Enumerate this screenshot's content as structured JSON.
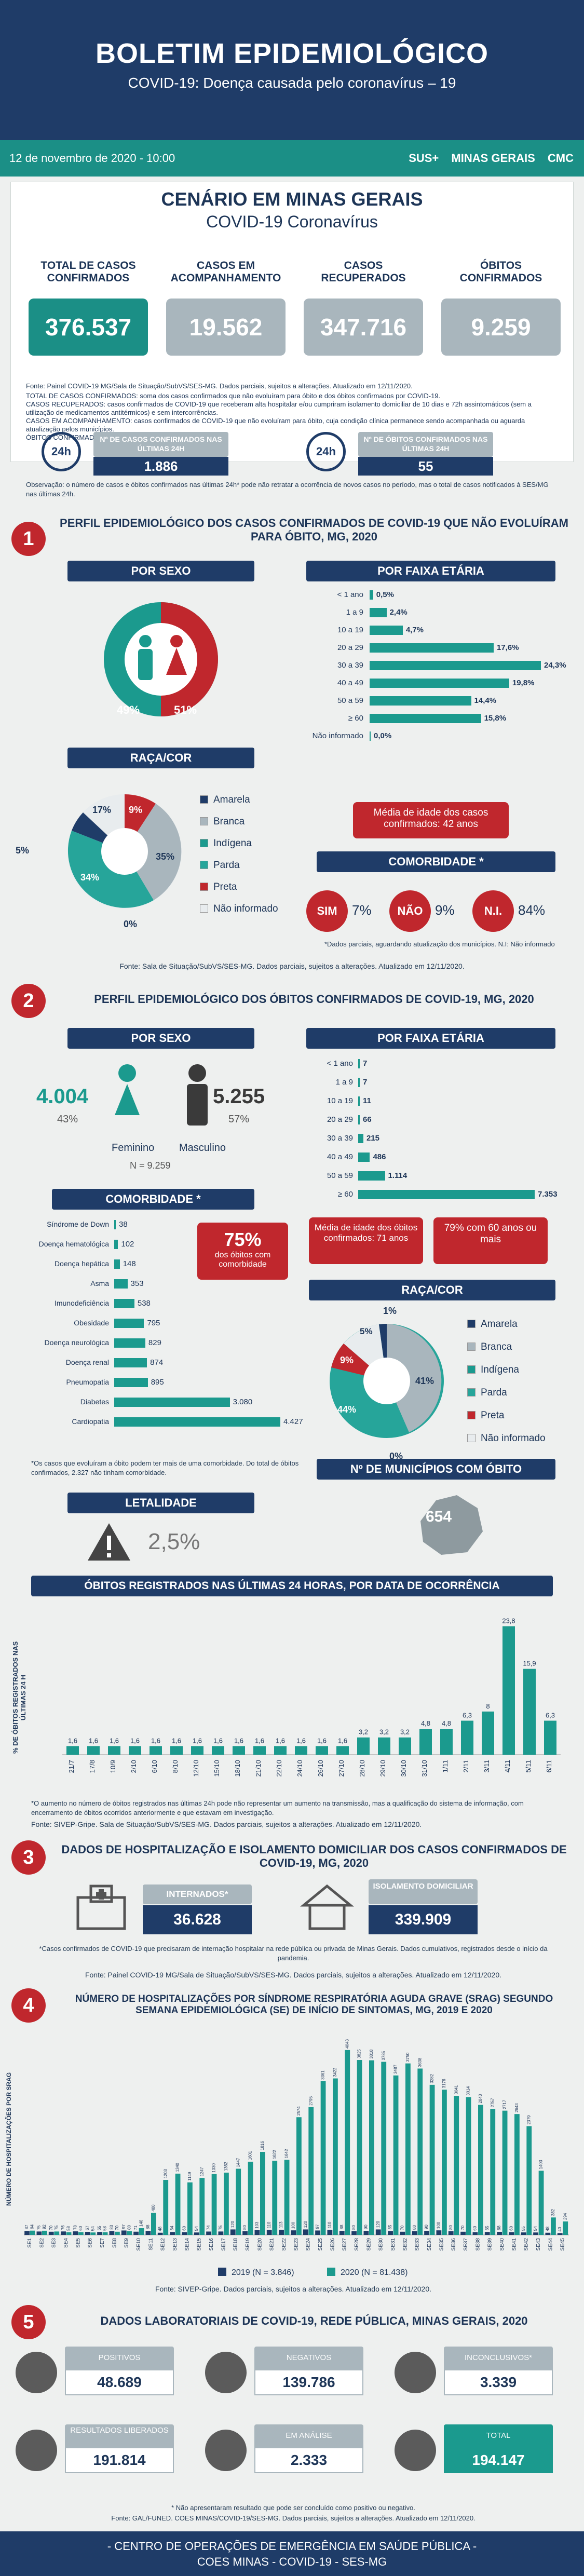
{
  "header": {
    "title": "BOLETIM EPIDEMIOLÓGICO",
    "subtitle": "COVID-19: Doença causada pelo coronavírus – 19"
  },
  "datebar": {
    "date": "12 de novembro de 2020 - 10:00",
    "logo_sus": "SUS+",
    "logo_mg": "MINAS GERAIS",
    "logo_cmc": "CMC"
  },
  "scenario": {
    "title1": "CENÁRIO EM MINAS GERAIS",
    "title2": "COVID-19 Coronavírus",
    "kpis": [
      {
        "label": "TOTAL DE CASOS CONFIRMADOS",
        "value": "376.537",
        "color": "#1b8f86"
      },
      {
        "label": "CASOS EM ACOMPANHAMENTO",
        "value": "19.562",
        "color": "#a9b6bd"
      },
      {
        "label": "CASOS RECUPERADOS",
        "value": "347.716",
        "color": "#a9b6bd"
      },
      {
        "label": "ÓBITOS CONFIRMADOS",
        "value": "9.259",
        "color": "#a9b6bd"
      }
    ],
    "source": "Fonte: Painel COVID-19 MG/Sala de Situação/SubVS/SES-MG. Dados parciais, sujeitos a alterações. Atualizado em 12/11/2020.",
    "notes": [
      "TOTAL DE CASOS CONFIRMADOS: soma dos casos confirmados que não evoluíram para óbito e dos óbitos confirmados por COVID-19.",
      "CASOS RECUPERADOS: casos confirmados de COVID-19 que receberam alta hospitalar e/ou cumpriram isolamento domiciliar de 10 dias e 72h assintomáticos (sem a utilização de medicamentos antitérmicos) e sem intercorrências.",
      "CASOS EM ACOMPANHAMENTO: casos confirmados de COVID-19 que não evoluíram para óbito, cuja condição clínica permanece sendo acompanhada ou aguarda atualização pelos municípios.",
      "ÓBITOS CONFIRMADOS: óbitos confirmados para COVID-19."
    ],
    "last24": [
      {
        "label": "Nº DE CASOS CONFIRMADOS NAS ÚLTIMAS 24H",
        "value": "1.886",
        "icon": "24h"
      },
      {
        "label": "Nº DE ÓBITOS CONFIRMADOS NAS ÚLTIMAS 24H",
        "value": "55",
        "icon": "24h"
      }
    ],
    "observacao": "Observação: o número de casos e óbitos confirmados nas últimas 24h* pode não retratar a ocorrência de novos casos no período, mas o total de casos notificados à SES/MG nas últimas 24h."
  },
  "s1": {
    "num": "1",
    "title": "PERFIL EPIDEMIOLÓGICO DOS CASOS CONFIRMADOS DE COVID-19 QUE NÃO EVOLUÍRAM PARA ÓBITO, MG, 2020",
    "sexo_title": "POR SEXO",
    "male_pct": "49%",
    "female_pct": "51%",
    "faixa_title": "POR FAIXA ETÁRIA",
    "faixa": [
      {
        "l": "< 1 ano",
        "v": 0.5,
        "t": "0,5%"
      },
      {
        "l": "1 a 9",
        "v": 2.4,
        "t": "2,4%"
      },
      {
        "l": "10 a 19",
        "v": 4.7,
        "t": "4,7%"
      },
      {
        "l": "20 a 29",
        "v": 17.6,
        "t": "17,6%"
      },
      {
        "l": "30 a 39",
        "v": 24.3,
        "t": "24,3%"
      },
      {
        "l": "40 a 49",
        "v": 19.8,
        "t": "19,8%"
      },
      {
        "l": "50 a 59",
        "v": 14.4,
        "t": "14,4%"
      },
      {
        "l": "≥ 60",
        "v": 15.8,
        "t": "15,8%"
      },
      {
        "l": "Não informado",
        "v": 0.0,
        "t": "0,0%"
      }
    ],
    "raca_title": "RAÇA/COR",
    "raca": [
      {
        "l": "Amarela",
        "v": 5,
        "t": "5%",
        "c": "#1f3c68"
      },
      {
        "l": "Branca",
        "v": 35,
        "t": "35%",
        "c": "#a9b6bd"
      },
      {
        "l": "Indígena",
        "v": 0,
        "t": "0%",
        "c": "#1b9a8e"
      },
      {
        "l": "Parda",
        "v": 34,
        "t": "34%",
        "c": "#26a59a"
      },
      {
        "l": "Preta",
        "v": 9,
        "t": "9%",
        "c": "#c0272d"
      },
      {
        "l": "Não informado",
        "v": 17,
        "t": "17%",
        "c": "#e8ecee"
      }
    ],
    "raca_labels": {
      "a": "5%",
      "b": "17%",
      "c": "9%",
      "d": "35%",
      "e": "34%",
      "f": "0%"
    },
    "media_idade": "Média de idade dos casos confirmados: 42 anos",
    "comorb_title": "COMORBIDADE *",
    "comorb": [
      {
        "l": "SIM",
        "v": "7%"
      },
      {
        "l": "NÃO",
        "v": "9%"
      },
      {
        "l": "N.I.",
        "v": "84%"
      }
    ],
    "comorb_note": "*Dados parciais, aguardando atualização dos municípios. N.I: Não informado",
    "source": "Fonte: Sala de Situação/SubVS/SES-MG. Dados parciais, sujeitos a alterações. Atualizado em 12/11/2020."
  },
  "s2": {
    "num": "2",
    "title": "PERFIL EPIDEMIOLÓGICO DOS ÓBITOS CONFIRMADOS DE COVID-19, MG, 2020",
    "sexo_title": "POR SEXO",
    "fem_n": "4.004",
    "fem_pct": "43%",
    "fem_lbl": "Feminino",
    "masc_n": "5.255",
    "masc_pct": "57%",
    "masc_lbl": "Masculino",
    "total": "N = 9.259",
    "faixa_title": "POR FAIXA ETÁRIA",
    "faixa": [
      {
        "l": "< 1 ano",
        "v": 7,
        "t": "7"
      },
      {
        "l": "1 a 9",
        "v": 7,
        "t": "7"
      },
      {
        "l": "10 a 19",
        "v": 11,
        "t": "11"
      },
      {
        "l": "20 a 29",
        "v": 66,
        "t": "66"
      },
      {
        "l": "30 a 39",
        "v": 215,
        "t": "215"
      },
      {
        "l": "40 a 49",
        "v": 486,
        "t": "486"
      },
      {
        "l": "50 a 59",
        "v": 1114,
        "t": "1.114"
      },
      {
        "l": "≥ 60",
        "v": 7353,
        "t": "7.353"
      }
    ],
    "media": "Média de idade dos óbitos confirmados: 71 anos",
    "pct60": "79% com 60 anos ou mais",
    "comorb_title": "COMORBIDADE *",
    "comorb": [
      {
        "l": "Síndrome de Down",
        "v": 38,
        "t": "38"
      },
      {
        "l": "Doença hematológica",
        "v": 102,
        "t": "102"
      },
      {
        "l": "Doença hepática",
        "v": 148,
        "t": "148"
      },
      {
        "l": "Asma",
        "v": 353,
        "t": "353"
      },
      {
        "l": "Imunodeficiência",
        "v": 538,
        "t": "538"
      },
      {
        "l": "Obesidade",
        "v": 795,
        "t": "795"
      },
      {
        "l": "Doença neurológica",
        "v": 829,
        "t": "829"
      },
      {
        "l": "Doença renal",
        "v": 874,
        "t": "874"
      },
      {
        "l": "Pneumopatia",
        "v": 895,
        "t": "895"
      },
      {
        "l": "Diabetes",
        "v": 3080,
        "t": "3.080"
      },
      {
        "l": "Cardiopatia",
        "v": 4427,
        "t": "4.427"
      }
    ],
    "comorb_big": "75%",
    "comorb_big_sub": "dos óbitos com comorbidade",
    "comorb_note": "*Os casos que evoluíram a óbito podem ter mais de uma comorbidade. Do total de óbitos confirmados, 2.327 não tinham comorbidade.",
    "raca_title": "RAÇA/COR",
    "raca": [
      {
        "l": "Amarela",
        "c": "#1f3c68"
      },
      {
        "l": "Branca",
        "c": "#a9b6bd"
      },
      {
        "l": "Indígena",
        "c": "#1b9a8e"
      },
      {
        "l": "Parda",
        "c": "#26a59a"
      },
      {
        "l": "Preta",
        "c": "#c0272d"
      },
      {
        "l": "Não informado",
        "c": "#e8ecee"
      }
    ],
    "raca_labels": {
      "a": "1%",
      "b": "5%",
      "c": "9%",
      "d": "41%",
      "e": "44%",
      "f": "0%"
    },
    "letal_title": "LETALIDADE",
    "letal": "2,5%",
    "mun_title": "Nº DE MUNICÍPIOS COM ÓBITO",
    "mun": "654",
    "obitos24_title": "ÓBITOS REGISTRADOS NAS ÚLTIMAS 24 HORAS, POR DATA DE OCORRÊNCIA",
    "ylabel": "% DE ÓBITOS REGISTRADOS NAS ÚLTIMAS 24 H",
    "note": "*O aumento no número de óbitos registrados nas últimas 24h pode não representar um aumento na transmissão, mas a qualificação do sistema de informação, com encerramento de óbitos ocorridos anteriormente e que estavam em investigação.",
    "source": "Fonte: SIVEP-Gripe. Sala de Situação/SubVS/SES-MG. Dados parciais, sujeitos a alterações. Atualizado em 12/11/2020."
  },
  "chart_data": [
    {
      "type": "bar",
      "title": "ÓBITOS REGISTRADOS NAS ÚLTIMAS 24 HORAS, POR DATA DE OCORRÊNCIA",
      "ylabel": "% DE ÓBITOS REGISTRADOS NAS ÚLTIMAS 24 H",
      "categories": [
        "21/7",
        "17/8",
        "10/9",
        "2/10",
        "6/10",
        "8/10",
        "12/10",
        "15/10",
        "18/10",
        "21/10",
        "22/10",
        "24/10",
        "26/10",
        "27/10",
        "28/10",
        "29/10",
        "30/10",
        "31/10",
        "1/11",
        "2/11",
        "3/11",
        "4/11",
        "5/11",
        "6/11"
      ],
      "values": [
        1.6,
        1.6,
        1.6,
        1.6,
        1.6,
        1.6,
        1.6,
        1.6,
        1.6,
        1.6,
        1.6,
        1.6,
        1.6,
        1.6,
        3.2,
        3.2,
        3.2,
        4.8,
        4.8,
        6.3,
        8,
        23.8,
        15.9,
        6.3
      ],
      "labels": [
        "1,6",
        "1,6",
        "1,6",
        "1,6",
        "1,6",
        "1,6",
        "1,6",
        "1,6",
        "1,6",
        "1,6",
        "1,6",
        "1,6",
        "1,6",
        "1,6",
        "3,2",
        "3,2",
        "3,2",
        "4,8",
        "4,8",
        "6,3",
        "8",
        "23,8",
        "15,9",
        "6,3"
      ]
    },
    {
      "type": "bar",
      "title": "NÚMERO DE HOSPITALIZAÇÕES POR SÍNDROME RESPIRATÓRIA AGUDA GRAVE (SRAG) SEGUNDO SEMANA EPIDEMIOLÓGICA (SE) DE INÍCIO DE SINTOMAS, MG, 2019 E 2020",
      "ylabel": "NÚMERO DE HOSPITALIZAÇÕES POR SRAG",
      "series": [
        {
          "name": "2019 (N = 3.846)",
          "values": [
            87,
            75,
            70,
            76,
            78,
            67,
            65,
            83,
            97,
            71,
            88,
            48,
            64,
            60,
            54,
            74,
            75,
            120,
            80,
            103,
            110,
            113,
            100,
            120,
            97,
            110,
            88,
            80,
            90,
            120,
            85,
            70,
            80,
            90,
            100,
            80,
            70,
            60,
            65,
            68,
            60,
            55,
            54,
            48,
            40
          ],
          "color": "#1f3c68"
        },
        {
          "name": "2020 (N = 81.438)",
          "values": [
            94,
            92,
            75,
            58,
            60,
            54,
            58,
            70,
            80,
            148,
            480,
            1203,
            1340,
            1149,
            1247,
            1330,
            1362,
            1447,
            1601,
            1816,
            1622,
            1642,
            2574,
            2795,
            3361,
            3422,
            4043,
            3825,
            3818,
            3785,
            3487,
            3750,
            3638,
            3282,
            3176,
            3041,
            3014,
            2843,
            2757,
            2717,
            2643,
            2379,
            1403,
            382,
            294
          ],
          "color": "#1b9a8e"
        }
      ],
      "categories": [
        "SE1",
        "SE2",
        "SE3",
        "SE4",
        "SE5",
        "SE6",
        "SE7",
        "SE8",
        "SE9",
        "SE10",
        "SE11",
        "SE12",
        "SE13",
        "SE14",
        "SE15",
        "SE16",
        "SE17",
        "SE18",
        "SE19",
        "SE20",
        "SE21",
        "SE22",
        "SE23",
        "SE24",
        "SE25",
        "SE26",
        "SE27",
        "SE28",
        "SE29",
        "SE30",
        "SE31",
        "SE32",
        "SE33",
        "SE34",
        "SE35",
        "SE36",
        "SE37",
        "SE38",
        "SE39",
        "SE40",
        "SE41",
        "SE42",
        "SE43",
        "SE44",
        "SE45"
      ]
    }
  ],
  "s3": {
    "num": "3",
    "title": "DADOS DE HOSPITALIZAÇÃO E ISOLAMENTO DOMICILIAR DOS CASOS CONFIRMADOS DE COVID-19, MG, 2020",
    "intern_lbl": "INTERNADOS*",
    "intern": "36.628",
    "isol_lbl": "ISOLAMENTO DOMICILIAR",
    "isol": "339.909",
    "note": "*Casos confirmados de COVID-19 que precisaram de internação hospitalar na rede pública ou privada de Minas Gerais. Dados cumulativos, registrados desde o início da pandemia.",
    "source": "Fonte: Painel COVID-19 MG/Sala de Situação/SubVS/SES-MG. Dados parciais, sujeitos a alterações. Atualizado em 12/11/2020."
  },
  "s4": {
    "num": "4",
    "title": "NÚMERO DE HOSPITALIZAÇÕES POR SÍNDROME RESPIRATÓRIA AGUDA GRAVE (SRAG) SEGUNDO SEMANA EPIDEMIOLÓGICA (SE) DE INÍCIO DE SINTOMAS, MG, 2019 E 2020",
    "source": "Fonte: SIVEP-Gripe. Dados parciais, sujeitos a alterações. Atualizado em 12/11/2020."
  },
  "s5": {
    "num": "5",
    "title": "DADOS LABORATORIAIS DE COVID-19, REDE PÚBLICA, MINAS GERAIS, 2020",
    "items": [
      {
        "l": "POSITIVOS",
        "v": "48.689"
      },
      {
        "l": "NEGATIVOS",
        "v": "139.786"
      },
      {
        "l": "INCONCLUSIVOS*",
        "v": "3.339"
      },
      {
        "l": "RESULTADOS LIBERADOS",
        "v": "191.814"
      },
      {
        "l": "EM ANÁLISE",
        "v": "2.333"
      },
      {
        "l": "TOTAL",
        "v": "194.147"
      }
    ],
    "note": "* Não apresentaram resultado que pode ser concluído como positivo ou negativo.",
    "source": "Fonte: GAL/FUNED. COES MINAS/COVID-19/SES-MG. Dados parciais, sujeitos a alterações. Atualizado em 12/11/2020."
  },
  "footer": {
    "line1": "- CENTRO DE OPERAÇÕES DE EMERGÊNCIA EM SAÚDE PÚBLICA -",
    "line2": "COES MINAS - COVID-19 - SES-MG"
  }
}
